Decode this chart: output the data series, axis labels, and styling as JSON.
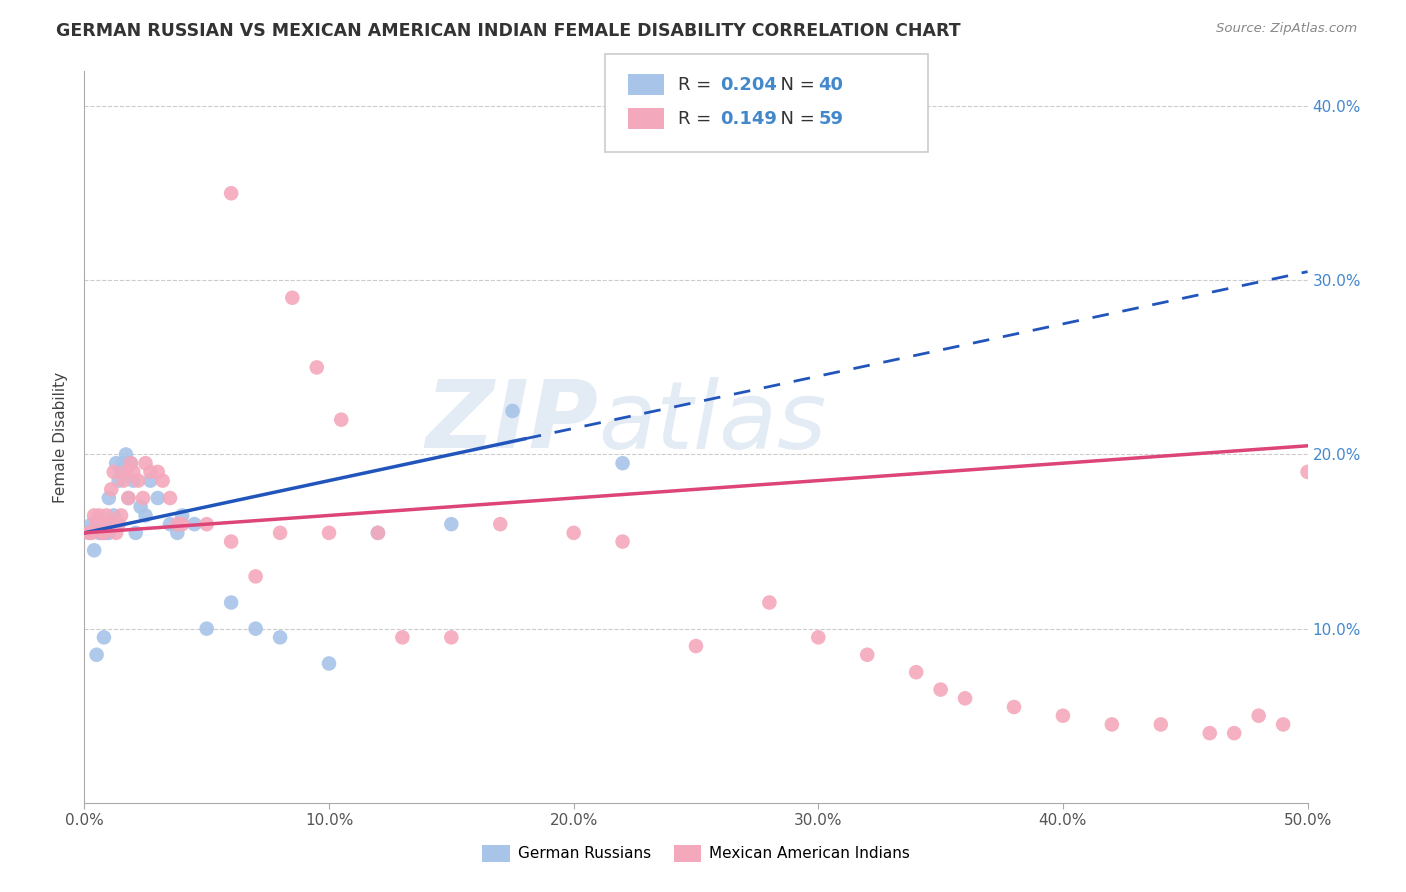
{
  "title": "GERMAN RUSSIAN VS MEXICAN AMERICAN INDIAN FEMALE DISABILITY CORRELATION CHART",
  "source": "Source: ZipAtlas.com",
  "ylabel": "Female Disability",
  "xlim": [
    0,
    0.5
  ],
  "ylim": [
    0,
    0.42
  ],
  "xticks": [
    0.0,
    0.1,
    0.2,
    0.3,
    0.4,
    0.5
  ],
  "xtick_labels": [
    "0.0%",
    "10.0%",
    "20.0%",
    "30.0%",
    "40.0%",
    "50.0%"
  ],
  "ytick_labels": [
    "10.0%",
    "20.0%",
    "30.0%",
    "40.0%"
  ],
  "yticks": [
    0.1,
    0.2,
    0.3,
    0.4
  ],
  "blue_R": "0.204",
  "blue_N": "40",
  "pink_R": "0.149",
  "pink_N": "59",
  "blue_color": "#a8c4e8",
  "pink_color": "#f4a8bc",
  "blue_line_color": "#2255bb",
  "pink_line_color": "#dd4477",
  "legend_label_blue": "German Russians",
  "legend_label_pink": "Mexican American Indians",
  "watermark": "ZIPatlas",
  "blue_x": [
    0.002,
    0.003,
    0.004,
    0.005,
    0.006,
    0.006,
    0.007,
    0.008,
    0.008,
    0.009,
    0.01,
    0.01,
    0.011,
    0.012,
    0.013,
    0.014,
    0.015,
    0.016,
    0.017,
    0.018,
    0.019,
    0.02,
    0.021,
    0.023,
    0.025,
    0.027,
    0.03,
    0.035,
    0.038,
    0.04,
    0.045,
    0.05,
    0.06,
    0.07,
    0.08,
    0.1,
    0.12,
    0.15,
    0.175,
    0.22
  ],
  "blue_y": [
    0.155,
    0.16,
    0.145,
    0.085,
    0.16,
    0.155,
    0.155,
    0.16,
    0.095,
    0.155,
    0.175,
    0.155,
    0.16,
    0.165,
    0.195,
    0.185,
    0.19,
    0.195,
    0.2,
    0.175,
    0.195,
    0.185,
    0.155,
    0.17,
    0.165,
    0.185,
    0.175,
    0.16,
    0.155,
    0.165,
    0.16,
    0.1,
    0.115,
    0.1,
    0.095,
    0.08,
    0.155,
    0.16,
    0.225,
    0.195
  ],
  "pink_x": [
    0.002,
    0.003,
    0.004,
    0.005,
    0.006,
    0.007,
    0.008,
    0.009,
    0.01,
    0.011,
    0.012,
    0.013,
    0.014,
    0.015,
    0.016,
    0.017,
    0.018,
    0.019,
    0.02,
    0.022,
    0.024,
    0.025,
    0.027,
    0.03,
    0.032,
    0.035,
    0.038,
    0.04,
    0.05,
    0.06,
    0.07,
    0.08,
    0.1,
    0.12,
    0.15,
    0.17,
    0.2,
    0.22,
    0.25,
    0.28,
    0.3,
    0.32,
    0.34,
    0.35,
    0.36,
    0.38,
    0.4,
    0.42,
    0.44,
    0.46,
    0.47,
    0.48,
    0.49,
    0.5,
    0.06,
    0.085,
    0.095,
    0.105,
    0.13
  ],
  "pink_y": [
    0.155,
    0.155,
    0.165,
    0.16,
    0.165,
    0.155,
    0.155,
    0.165,
    0.16,
    0.18,
    0.19,
    0.155,
    0.16,
    0.165,
    0.185,
    0.19,
    0.175,
    0.195,
    0.19,
    0.185,
    0.175,
    0.195,
    0.19,
    0.19,
    0.185,
    0.175,
    0.16,
    0.16,
    0.16,
    0.15,
    0.13,
    0.155,
    0.155,
    0.155,
    0.095,
    0.16,
    0.155,
    0.15,
    0.09,
    0.115,
    0.095,
    0.085,
    0.075,
    0.065,
    0.06,
    0.055,
    0.05,
    0.045,
    0.045,
    0.04,
    0.04,
    0.05,
    0.045,
    0.19,
    0.35,
    0.29,
    0.25,
    0.22,
    0.095
  ]
}
